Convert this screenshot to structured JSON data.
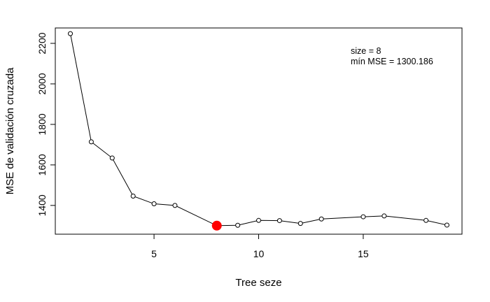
{
  "chart_data": {
    "type": "line",
    "title": "",
    "xlabel": "Tree seze",
    "ylabel": "MSE de validación cruzada",
    "x": [
      1,
      2,
      3,
      4,
      5,
      6,
      8,
      9,
      10,
      11,
      12,
      13,
      15,
      16,
      18,
      19
    ],
    "series": [
      {
        "values": [
          2248,
          1714,
          1634,
          1446,
          1408,
          1400,
          1300.186,
          1302,
          1326,
          1325,
          1311,
          1333,
          1344,
          1348,
          1326,
          1303
        ]
      }
    ],
    "xlim": [
      0.28,
      19.72
    ],
    "ylim": [
      1258,
      2276
    ],
    "xticks": [
      5,
      10,
      15
    ],
    "yticks": [
      1400,
      1600,
      1800,
      2000,
      2200
    ],
    "highlight": {
      "x": 8,
      "y": 1300.186,
      "color": "#ff0000"
    },
    "annotations": [
      "size = 8",
      "mín MSE = 1300.186"
    ],
    "grid": false,
    "legend": "none",
    "line_color": "#000000"
  }
}
